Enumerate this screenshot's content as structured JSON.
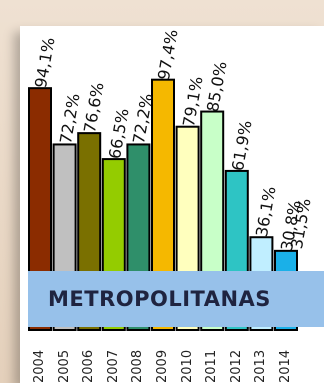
{
  "chart_data": {
    "type": "bar",
    "categories": [
      "2004",
      "2005",
      "2006",
      "2007",
      "2008",
      "2009",
      "2010",
      "2011",
      "2012",
      "2013",
      "2014"
    ],
    "values": [
      94.1,
      72.2,
      76.6,
      66.5,
      72.2,
      97.4,
      79.1,
      85.0,
      61.9,
      36.1,
      30.8
    ],
    "data_labels": [
      "94,1%",
      "72,2%",
      "76,6%",
      "66,5%",
      "72,2%",
      "97,4%",
      "79,1%",
      "85,0%",
      "61,9%",
      "36,1%",
      "30,8%"
    ],
    "partial_label": "31,5%",
    "bar_colors": [
      "#8b2c00",
      "#c0c0c0",
      "#7a7000",
      "#94cc00",
      "#2f8f6a",
      "#f5b800",
      "#ffffbe",
      "#c8ffc8",
      "#2ec4c4",
      "#c0eeff",
      "#1ab0e8"
    ],
    "ylim": [
      0,
      100
    ],
    "grid": false
  },
  "banner": {
    "text": "METROPOLITANAS",
    "color": "#97c1ea"
  }
}
